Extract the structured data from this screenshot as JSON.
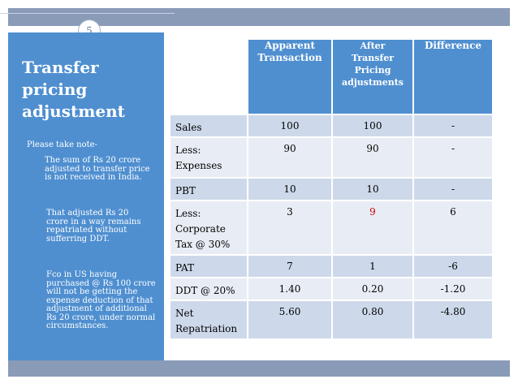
{
  "slide": {
    "number": "5",
    "title": "Transfer pricing adjustment",
    "notes": {
      "heading": "Please take note-",
      "items": [
        "The sum of Rs 20 crore adjusted to transfer price is not received in India.",
        "That adjusted Rs 20 crore in a way remains repatriated  without sufferring DDT.",
        "Fco in US having purchased @ Rs 100 crore will not be getting the expense deduction of that adjustment of additional Rs 20  crore, under normal circumstances."
      ]
    }
  },
  "table": {
    "headers": [
      "",
      "Apparent Transaction",
      "After Transfer Pricing adjustments",
      "Difference"
    ],
    "rows": [
      {
        "label": "Sales",
        "apparent": "100",
        "after": "100",
        "difference": "-"
      },
      {
        "label": "Less: Expenses",
        "apparent": "90",
        "after": "90",
        "difference": "-"
      },
      {
        "label": "PBT",
        "apparent": "10",
        "after": "10",
        "difference": "-"
      },
      {
        "label": "Less: Corporate Tax @ 30%",
        "apparent": "3",
        "after": "9",
        "difference": "6"
      },
      {
        "label": "PAT",
        "apparent": "7",
        "after": "1",
        "difference": "-6"
      },
      {
        "label": "DDT @ 20%",
        "apparent": "1.40",
        "after": "0.20",
        "difference": "-1.20"
      },
      {
        "label": "Net Repatriation",
        "apparent": "5.60",
        "after": "0.80",
        "difference": "-4.80"
      }
    ]
  },
  "colors": {
    "accent_blue": "#4f8fd0",
    "bar_gray": "#8a9bb8",
    "highlight_red": "#cc0000"
  }
}
